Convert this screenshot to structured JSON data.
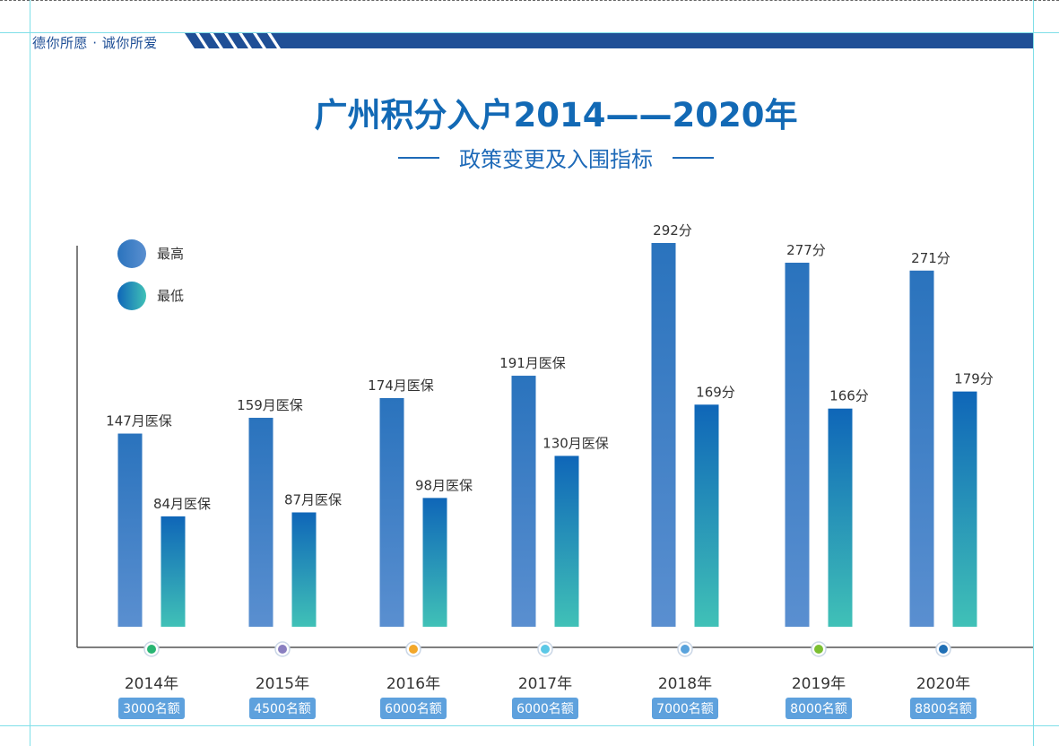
{
  "header": {
    "slogan": "德你所愿 · 诚你所爱",
    "colors": {
      "bar": "#1f4f96",
      "accent": "#1269b5"
    }
  },
  "title": "广州积分入户2014——2020年",
  "subtitle": "政策变更及入围指标",
  "chart_data": {
    "type": "bar",
    "categories": [
      "2014年",
      "2015年",
      "2016年",
      "2017年",
      "2018年",
      "2019年",
      "2020年"
    ],
    "quotas": [
      "3000名额",
      "4500名额",
      "6000名额",
      "6000名额",
      "7000名额",
      "8000名额",
      "8800名额"
    ],
    "series": [
      {
        "name": "最高",
        "values": [
          147,
          159,
          174,
          191,
          292,
          277,
          271
        ],
        "labels": [
          "147月医保",
          "159月医保",
          "174月医保",
          "191月医保",
          "292分",
          "277分",
          "271分"
        ],
        "gradient": [
          "#2a73bd",
          "#5a8fd0"
        ]
      },
      {
        "name": "最低",
        "values": [
          84,
          87,
          98,
          130,
          169,
          166,
          179
        ],
        "labels": [
          "84月医保",
          "87月医保",
          "98月医保",
          "130月医保",
          "169分",
          "166分",
          "179分"
        ],
        "gradient": [
          "#0f66b8",
          "#40c1b7"
        ]
      }
    ],
    "dot_colors": [
      "#28b573",
      "#8a7fc0",
      "#f2a72a",
      "#5bc8e6",
      "#5aa3dc",
      "#7bbf32",
      "#1f6fb5"
    ],
    "quota_bg": "#5ea1dd",
    "legend_placement": "top-left"
  }
}
